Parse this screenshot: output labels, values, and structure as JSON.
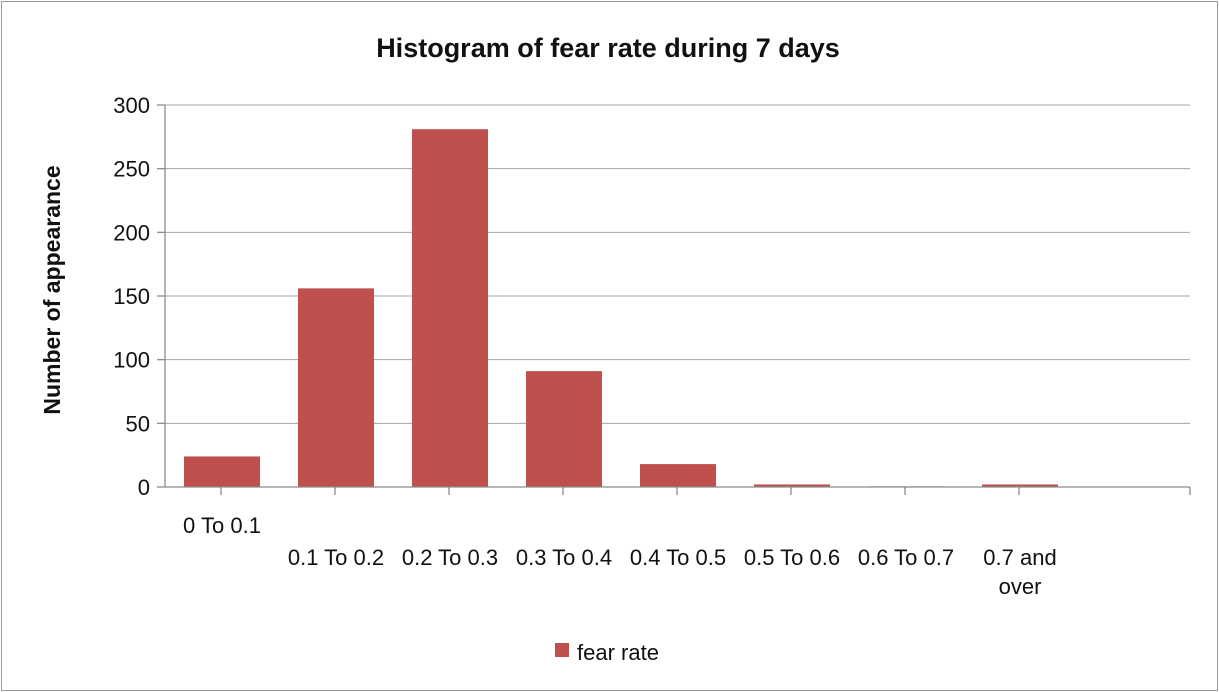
{
  "chart_data": {
    "type": "bar",
    "title": "Histogram of fear rate during 7 days",
    "xlabel": "",
    "ylabel": "Number of appearance",
    "categories": [
      "0 To 0.1",
      "0.1 To 0.2",
      "0.2 To 0.3",
      "0.3 To 0.4",
      "0.4 To 0.5",
      "0.5 To 0.6",
      "0.6 To 0.7",
      "0.7 and over"
    ],
    "series": [
      {
        "name": "fear rate",
        "values": [
          24,
          156,
          281,
          91,
          18,
          2,
          0.5,
          2
        ]
      }
    ],
    "ylim": [
      0,
      300
    ],
    "yticks": [
      0,
      50,
      100,
      150,
      200,
      250,
      300
    ],
    "grid": true,
    "legend": "bottom",
    "bar_color": "#c0504d"
  }
}
